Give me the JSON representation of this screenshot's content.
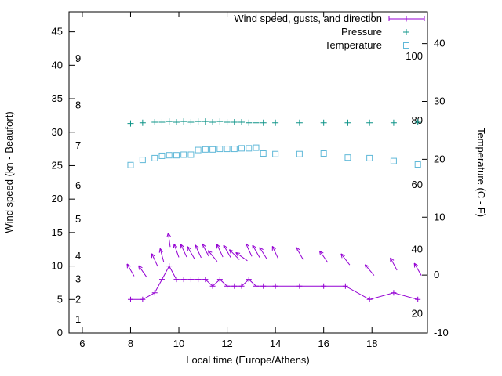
{
  "chart_data": {
    "type": "line",
    "title": "",
    "xlabel": "Local time (Europe/Athens)",
    "ylabel_left": "Wind speed (kn - Beaufort)",
    "ylabel_right": "Temperature (C - F)",
    "xlim": [
      5.45,
      20.3
    ],
    "x_ticks": [
      6,
      8,
      10,
      12,
      14,
      16,
      18
    ],
    "ylim_left": [
      0,
      48
    ],
    "y_ticks_left": [
      0,
      5,
      10,
      15,
      20,
      25,
      30,
      35,
      40,
      45
    ],
    "ylim_right": [
      -10,
      45.5
    ],
    "y_ticks_right": [
      -10,
      0,
      10,
      20,
      30,
      40
    ],
    "beaufort_labels": [
      {
        "label": "1",
        "kn": 2
      },
      {
        "label": "2",
        "kn": 5
      },
      {
        "label": "3",
        "kn": 8
      },
      {
        "label": "4",
        "kn": 11.5
      },
      {
        "label": "5",
        "kn": 17
      },
      {
        "label": "6",
        "kn": 22
      },
      {
        "label": "7",
        "kn": 28
      },
      {
        "label": "8",
        "kn": 34
      },
      {
        "label": "9",
        "kn": 41
      }
    ],
    "fahrenheit_labels": [
      {
        "label": "20",
        "f": 20
      },
      {
        "label": "40",
        "f": 40
      },
      {
        "label": "60",
        "f": 60
      },
      {
        "label": "80",
        "f": 80
      },
      {
        "label": "100",
        "f": 100
      }
    ],
    "grid": false,
    "legend_position": "top-right-inside",
    "legend": [
      {
        "label": "Wind speed, gusts, and direction",
        "series": "wind",
        "marker": "line-plus"
      },
      {
        "label": "Pressure",
        "series": "pressure",
        "marker": "plus"
      },
      {
        "label": "Temperature",
        "series": "temperature",
        "marker": "square"
      }
    ],
    "colors": {
      "wind": "#9400d3",
      "pressure": "#0e9488",
      "temperature": "#5fb8d8",
      "axis": "#000000",
      "background": "#ffffff"
    },
    "series": {
      "wind": {
        "axis": "left",
        "unit": "kn",
        "points": [
          [
            8.0,
            5
          ],
          [
            8.5,
            5
          ],
          [
            9.0,
            6
          ],
          [
            9.3,
            8
          ],
          [
            9.6,
            10
          ],
          [
            9.9,
            8
          ],
          [
            10.2,
            8
          ],
          [
            10.5,
            8
          ],
          [
            10.8,
            8
          ],
          [
            11.1,
            8
          ],
          [
            11.4,
            7
          ],
          [
            11.7,
            8
          ],
          [
            12.0,
            7
          ],
          [
            12.3,
            7
          ],
          [
            12.6,
            7
          ],
          [
            12.9,
            8
          ],
          [
            13.2,
            7
          ],
          [
            13.5,
            7
          ],
          [
            14.0,
            7
          ],
          [
            15.0,
            7
          ],
          [
            16.0,
            7
          ],
          [
            16.9,
            7
          ],
          [
            17.9,
            5
          ],
          [
            18.9,
            6
          ],
          [
            19.9,
            5
          ]
        ]
      },
      "wind_direction_arrows": {
        "axis": "left",
        "unit": "kn-position, angle-deg-from-vertical",
        "points": [
          [
            8.0,
            9.4,
            -30
          ],
          [
            8.5,
            9.2,
            -35
          ],
          [
            9.0,
            10.9,
            -25
          ],
          [
            9.3,
            11.6,
            -15
          ],
          [
            9.6,
            13.9,
            -8
          ],
          [
            9.9,
            12.3,
            -20
          ],
          [
            10.2,
            12.3,
            -25
          ],
          [
            10.5,
            12.0,
            -30
          ],
          [
            10.8,
            12.2,
            -25
          ],
          [
            11.1,
            12.4,
            -28
          ],
          [
            11.4,
            11.5,
            -40
          ],
          [
            11.7,
            12.3,
            -25
          ],
          [
            12.0,
            12.2,
            -30
          ],
          [
            12.3,
            11.7,
            -45
          ],
          [
            12.6,
            11.4,
            -55
          ],
          [
            12.9,
            12.4,
            -25
          ],
          [
            13.2,
            12.2,
            -30
          ],
          [
            13.5,
            11.9,
            -32
          ],
          [
            14.0,
            12.0,
            -25
          ],
          [
            15.0,
            11.9,
            -30
          ],
          [
            16.0,
            11.4,
            -35
          ],
          [
            16.9,
            11.0,
            -38
          ],
          [
            17.9,
            9.4,
            -40
          ],
          [
            18.9,
            10.3,
            -28
          ],
          [
            19.9,
            9.5,
            -30
          ]
        ]
      },
      "pressure": {
        "axis": "left",
        "note": "no pressure scale shown; values are plotted height on left axis",
        "points": [
          [
            8.0,
            31.3
          ],
          [
            8.5,
            31.4
          ],
          [
            9.0,
            31.5
          ],
          [
            9.3,
            31.5
          ],
          [
            9.6,
            31.6
          ],
          [
            9.9,
            31.5
          ],
          [
            10.2,
            31.6
          ],
          [
            10.5,
            31.5
          ],
          [
            10.8,
            31.6
          ],
          [
            11.1,
            31.6
          ],
          [
            11.4,
            31.5
          ],
          [
            11.7,
            31.6
          ],
          [
            12.0,
            31.5
          ],
          [
            12.3,
            31.5
          ],
          [
            12.6,
            31.5
          ],
          [
            12.9,
            31.4
          ],
          [
            13.2,
            31.4
          ],
          [
            13.5,
            31.4
          ],
          [
            14.0,
            31.4
          ],
          [
            15.0,
            31.4
          ],
          [
            16.0,
            31.4
          ],
          [
            17.0,
            31.4
          ],
          [
            17.9,
            31.4
          ],
          [
            18.9,
            31.4
          ],
          [
            19.9,
            31.5
          ]
        ]
      },
      "temperature": {
        "axis": "right",
        "unit": "C",
        "points": [
          [
            8.0,
            19.0
          ],
          [
            8.5,
            19.9
          ],
          [
            9.0,
            20.2
          ],
          [
            9.3,
            20.6
          ],
          [
            9.6,
            20.7
          ],
          [
            9.9,
            20.7
          ],
          [
            10.2,
            20.8
          ],
          [
            10.5,
            20.8
          ],
          [
            10.8,
            21.6
          ],
          [
            11.1,
            21.7
          ],
          [
            11.4,
            21.7
          ],
          [
            11.7,
            21.8
          ],
          [
            12.0,
            21.8
          ],
          [
            12.3,
            21.8
          ],
          [
            12.6,
            21.9
          ],
          [
            12.9,
            21.9
          ],
          [
            13.2,
            22.0
          ],
          [
            13.5,
            21.0
          ],
          [
            14.0,
            20.9
          ],
          [
            15.0,
            20.9
          ],
          [
            16.0,
            21.0
          ],
          [
            17.0,
            20.3
          ],
          [
            17.9,
            20.2
          ],
          [
            18.9,
            19.7
          ],
          [
            19.9,
            19.1
          ]
        ]
      }
    }
  }
}
